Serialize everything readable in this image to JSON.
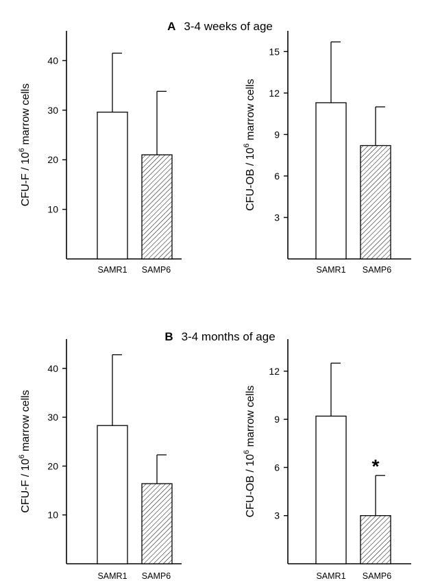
{
  "panels": [
    {
      "letter": "A",
      "title": "3-4 weeks of age"
    },
    {
      "letter": "B",
      "title": "3-4 months of age"
    }
  ],
  "chart_data": [
    {
      "type": "bar",
      "panel": "A",
      "categories": [
        "SAMR1",
        "SAMP6"
      ],
      "values": [
        29.6,
        21.0
      ],
      "error_upper": [
        41.5,
        33.8
      ],
      "ylabel_main": "CFU-F / 10",
      "ylabel_exp": "6",
      "ylabel_tail": " marrow cells",
      "ylim": [
        0,
        46
      ],
      "yticks": [
        10,
        20,
        30,
        40
      ],
      "fills": [
        "open",
        "hatched"
      ],
      "annotation": ""
    },
    {
      "type": "bar",
      "panel": "A",
      "categories": [
        "SAMR1",
        "SAMP6"
      ],
      "values": [
        11.3,
        8.2
      ],
      "error_upper": [
        15.7,
        11.0
      ],
      "ylabel_main": "CFU-OB / 10",
      "ylabel_exp": "6",
      "ylabel_tail": " marrow cells",
      "ylim": [
        0,
        16.5
      ],
      "yticks": [
        3,
        6,
        9,
        12,
        15
      ],
      "fills": [
        "open",
        "hatched"
      ],
      "annotation": ""
    },
    {
      "type": "bar",
      "panel": "B",
      "categories": [
        "SAMR1",
        "SAMP6"
      ],
      "values": [
        28.3,
        16.4
      ],
      "error_upper": [
        42.8,
        22.3
      ],
      "ylabel_main": "CFU-F / 10",
      "ylabel_exp": "6",
      "ylabel_tail": " marrow cells",
      "ylim": [
        0,
        46
      ],
      "yticks": [
        10,
        20,
        30,
        40
      ],
      "fills": [
        "open",
        "hatched"
      ],
      "annotation": ""
    },
    {
      "type": "bar",
      "panel": "B",
      "categories": [
        "SAMR1",
        "SAMP6"
      ],
      "values": [
        9.2,
        3.0
      ],
      "error_upper": [
        12.5,
        5.5
      ],
      "ylabel_main": "CFU-OB / 10",
      "ylabel_exp": "6",
      "ylabel_tail": " marrow cells",
      "ylim": [
        0,
        14
      ],
      "yticks": [
        3,
        6,
        9,
        12
      ],
      "fills": [
        "open",
        "hatched"
      ],
      "annotation": "*"
    }
  ]
}
